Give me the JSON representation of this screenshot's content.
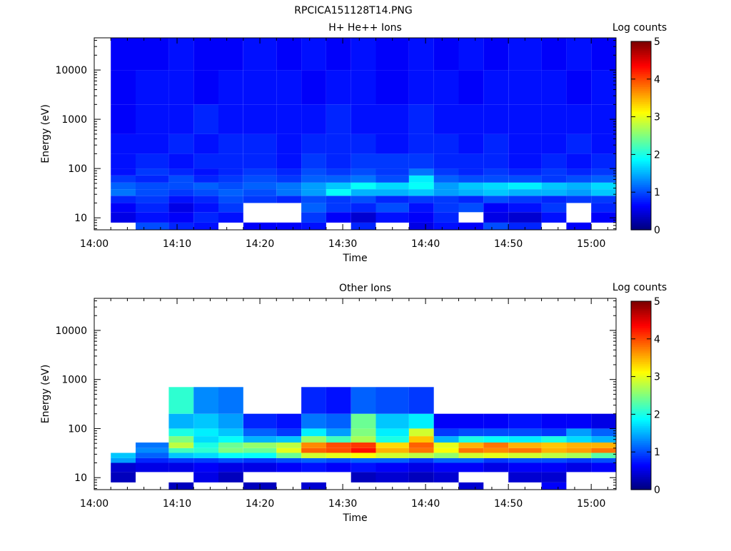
{
  "figure_title": "RPCICA151128T14.PNG",
  "chart_data": [
    {
      "type": "heatmap",
      "title": "H+ He++ Ions",
      "xlabel": "Time",
      "ylabel": "Energy (eV)",
      "colorbar_label": "Log counts",
      "colorbar_ticks": [
        "0",
        "1",
        "2",
        "3",
        "4",
        "5"
      ],
      "xticks": [
        "14:00",
        "14:10",
        "14:20",
        "14:30",
        "14:40",
        "14:50",
        "15:00"
      ],
      "yticks": [
        "10",
        "100",
        "1000",
        "10000"
      ],
      "xlim": [
        "14:00",
        "15:03"
      ],
      "ylim": [
        5.7,
        45000
      ],
      "yscale": "log",
      "time_columns": [
        "14:02",
        "14:05",
        "14:09",
        "14:12",
        "14:15",
        "14:18",
        "14:22",
        "14:25",
        "14:28",
        "14:31",
        "14:34",
        "14:38",
        "14:41",
        "14:44",
        "14:47",
        "14:50",
        "14:54",
        "14:57",
        "15:00",
        "15:03"
      ],
      "rows": [
        {
          "e_low": 5.7,
          "e_high": 8.0,
          "values": [
            null,
            1.0,
            0.8,
            0.7,
            null,
            0.6,
            0.6,
            0.7,
            null,
            0.8,
            null,
            0.5,
            0.7,
            0.6,
            1.0,
            0.8,
            null,
            0.6,
            null
          ]
        },
        {
          "e_low": 8.0,
          "e_high": 13.0,
          "values": [
            0.5,
            0.7,
            0.6,
            0.8,
            0.7,
            null,
            null,
            0.9,
            0.6,
            0.4,
            0.7,
            0.6,
            0.8,
            null,
            0.5,
            0.4,
            0.7,
            null,
            0.6
          ]
        },
        {
          "e_low": 13.0,
          "e_high": 20.0,
          "values": [
            0.6,
            0.8,
            0.5,
            0.7,
            0.9,
            null,
            null,
            1.1,
            0.9,
            0.8,
            1.0,
            0.7,
            0.9,
            1.0,
            0.6,
            0.7,
            0.9,
            null,
            0.8
          ]
        },
        {
          "e_low": 20.0,
          "e_high": 28.0,
          "values": [
            0.8,
            0.9,
            0.7,
            0.8,
            1.0,
            0.9,
            0.8,
            1.0,
            0.9,
            1.0,
            0.8,
            0.9,
            0.9,
            0.8,
            1.0,
            0.9,
            0.8,
            0.9,
            0.9
          ]
        },
        {
          "e_low": 28.0,
          "e_high": 38.0,
          "values": [
            1.2,
            1.0,
            0.9,
            1.0,
            1.1,
            1.0,
            1.2,
            1.4,
            1.9,
            1.5,
            1.5,
            1.6,
            1.4,
            1.5,
            1.6,
            1.5,
            1.5,
            1.4,
            1.6
          ]
        },
        {
          "e_low": 38.0,
          "e_high": 52.0,
          "values": [
            1.1,
            1.0,
            1.0,
            1.1,
            1.0,
            1.1,
            1.2,
            1.4,
            1.6,
            1.9,
            1.7,
            1.9,
            1.4,
            1.6,
            1.7,
            1.8,
            1.6,
            1.5,
            1.7
          ]
        },
        {
          "e_low": 52.0,
          "e_high": 72.0,
          "values": [
            0.9,
            0.8,
            1.0,
            0.8,
            0.9,
            1.0,
            0.9,
            1.1,
            1.1,
            1.2,
            1.0,
            1.8,
            1.1,
            1.0,
            1.0,
            1.0,
            0.9,
            1.0,
            1.1
          ]
        },
        {
          "e_low": 72.0,
          "e_high": 100.0,
          "values": [
            0.7,
            0.9,
            0.8,
            0.7,
            0.8,
            0.9,
            0.8,
            1.0,
            0.9,
            1.0,
            0.9,
            1.2,
            0.9,
            0.8,
            0.9,
            0.8,
            0.9,
            0.8,
            0.9
          ]
        },
        {
          "e_low": 100.0,
          "e_high": 200.0,
          "values": [
            0.7,
            0.8,
            0.7,
            0.8,
            0.8,
            0.8,
            0.7,
            0.9,
            0.8,
            0.9,
            0.9,
            0.9,
            0.8,
            0.8,
            0.8,
            0.7,
            0.8,
            0.7,
            0.8
          ]
        },
        {
          "e_low": 200.0,
          "e_high": 500.0,
          "values": [
            0.7,
            0.7,
            0.8,
            0.7,
            0.8,
            0.8,
            0.7,
            0.8,
            0.8,
            0.8,
            0.7,
            0.8,
            0.8,
            0.7,
            0.8,
            0.7,
            0.7,
            0.8,
            0.7
          ]
        },
        {
          "e_low": 500.0,
          "e_high": 2000.0,
          "values": [
            0.6,
            0.7,
            0.7,
            0.8,
            0.7,
            0.7,
            0.7,
            0.7,
            0.8,
            0.7,
            0.7,
            0.8,
            0.7,
            0.7,
            0.7,
            0.7,
            0.7,
            0.7,
            0.7
          ]
        },
        {
          "e_low": 2000.0,
          "e_high": 10000.0,
          "values": [
            0.6,
            0.7,
            0.7,
            0.6,
            0.7,
            0.7,
            0.7,
            0.6,
            0.7,
            0.7,
            0.6,
            0.7,
            0.7,
            0.6,
            0.7,
            0.7,
            0.7,
            0.6,
            0.7
          ]
        },
        {
          "e_low": 10000.0,
          "e_high": 45000.0,
          "values": [
            0.6,
            0.6,
            0.7,
            0.6,
            0.6,
            0.7,
            0.6,
            0.7,
            0.6,
            0.7,
            0.6,
            0.7,
            0.6,
            0.7,
            0.6,
            0.7,
            0.6,
            0.7,
            0.6
          ]
        }
      ],
      "colormap": "jet",
      "color_range": [
        0,
        5
      ]
    },
    {
      "type": "heatmap",
      "title": "Other Ions",
      "xlabel": "Time",
      "ylabel": "Energy (eV)",
      "colorbar_label": "Log counts",
      "colorbar_ticks": [
        "0",
        "1",
        "2",
        "3",
        "4",
        "5"
      ],
      "xticks": [
        "14:00",
        "14:10",
        "14:20",
        "14:30",
        "14:40",
        "14:50",
        "15:00"
      ],
      "yticks": [
        "10",
        "100",
        "1000",
        "10000"
      ],
      "xlim": [
        "14:00",
        "15:03"
      ],
      "ylim": [
        5.7,
        45000
      ],
      "yscale": "log",
      "time_columns": [
        "14:02",
        "14:05",
        "14:09",
        "14:12",
        "14:15",
        "14:18",
        "14:22",
        "14:25",
        "14:28",
        "14:31",
        "14:34",
        "14:38",
        "14:41",
        "14:44",
        "14:47",
        "14:50",
        "14:54",
        "14:57",
        "15:00",
        "15:03"
      ],
      "rows": [
        {
          "e_low": 5.7,
          "e_high": 8.0,
          "values": [
            null,
            null,
            0.3,
            null,
            null,
            0.3,
            null,
            0.4,
            null,
            null,
            null,
            null,
            null,
            0.4,
            null,
            null,
            0.6,
            null,
            null
          ]
        },
        {
          "e_low": 8.0,
          "e_high": 13.0,
          "values": [
            0.3,
            null,
            null,
            0.5,
            0.3,
            null,
            null,
            null,
            null,
            0.3,
            0.4,
            0.3,
            0.4,
            null,
            null,
            0.4,
            0.4,
            null,
            null
          ]
        },
        {
          "e_low": 13.0,
          "e_high": 20.0,
          "values": [
            0.4,
            0.5,
            0.5,
            0.6,
            0.5,
            0.5,
            0.6,
            0.7,
            0.6,
            0.7,
            0.6,
            0.5,
            0.6,
            0.6,
            0.5,
            0.6,
            0.6,
            0.5,
            0.6
          ]
        },
        {
          "e_low": 20.0,
          "e_high": 25.0,
          "values": [
            1.4,
            0.8,
            0.9,
            0.9,
            1.0,
            0.9,
            1.0,
            1.1,
            1.0,
            1.1,
            1.1,
            0.9,
            1.1,
            1.1,
            0.9,
            1.0,
            1.0,
            0.9,
            1.0
          ]
        },
        {
          "e_low": 25.0,
          "e_high": 32.0,
          "values": [
            1.6,
            1.1,
            1.6,
            1.7,
            1.9,
            1.9,
            2.4,
            2.9,
            3.0,
            3.1,
            2.9,
            2.8,
            2.6,
            2.9,
            3.0,
            2.9,
            2.8,
            2.7,
            2.3
          ]
        },
        {
          "e_low": 32.0,
          "e_high": 40.0,
          "values": [
            null,
            1.3,
            2.2,
            2.1,
            2.5,
            2.4,
            3.0,
            3.9,
            4.0,
            4.3,
            3.5,
            3.8,
            3.1,
            3.8,
            3.7,
            3.8,
            3.5,
            3.6,
            3.8
          ]
        },
        {
          "e_low": 40.0,
          "e_high": 52.0,
          "values": [
            null,
            1.2,
            2.8,
            2.0,
            2.4,
            2.6,
            2.8,
            3.7,
            4.0,
            4.1,
            3.3,
            3.9,
            3.0,
            3.5,
            3.8,
            3.5,
            3.4,
            3.5,
            3.5
          ]
        },
        {
          "e_low": 52.0,
          "e_high": 70.0,
          "values": [
            null,
            null,
            2.5,
            1.7,
            1.9,
            1.5,
            1.6,
            2.6,
            2.2,
            2.7,
            2.0,
            3.4,
            1.5,
            2.0,
            1.9,
            1.8,
            2.0,
            1.7,
            1.5
          ]
        },
        {
          "e_low": 70.0,
          "e_high": 100.0,
          "values": [
            null,
            null,
            2.0,
            1.8,
            1.6,
            1.1,
            0.9,
            1.8,
            1.4,
            2.5,
            1.8,
            2.9,
            0.9,
            1.0,
            1.0,
            1.0,
            0.9,
            1.4,
            1.1
          ]
        },
        {
          "e_low": 100.0,
          "e_high": 200.0,
          "values": [
            null,
            null,
            1.5,
            1.6,
            1.4,
            0.8,
            0.7,
            1.2,
            1.1,
            2.4,
            1.6,
            1.8,
            0.6,
            0.6,
            0.6,
            0.7,
            0.6,
            0.6,
            0.5
          ]
        },
        {
          "e_low": 200.0,
          "e_high": 700.0,
          "values": [
            null,
            null,
            2.1,
            1.3,
            1.2,
            null,
            null,
            0.8,
            0.7,
            1.1,
            1.0,
            0.9,
            null,
            null,
            null,
            null,
            null,
            null,
            null
          ]
        }
      ],
      "colormap": "jet",
      "color_range": [
        0,
        5
      ]
    }
  ]
}
